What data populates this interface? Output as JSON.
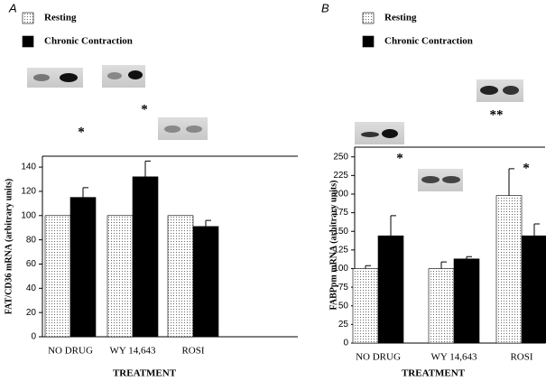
{
  "chart_data": [
    {
      "type": "bar",
      "panel_label": "A",
      "categories": [
        "NO DRUG",
        "WY 14,643",
        "ROSI"
      ],
      "series": [
        {
          "name": "Resting",
          "color": "#d8d8d8",
          "hatch": "dots",
          "values": [
            100,
            100,
            100
          ],
          "errors": [
            null,
            null,
            null
          ]
        },
        {
          "name": "Chronic Contraction",
          "color": "#000000",
          "values": [
            115,
            132,
            91
          ],
          "errors": [
            8,
            13,
            5
          ]
        }
      ],
      "ylim": [
        0,
        149
      ],
      "yticks": [
        0,
        20,
        40,
        60,
        80,
        100,
        120,
        140
      ],
      "x_label": "TREATMENT",
      "y_label": "FAT/CD36 mRNA (arbitrary units)",
      "annotations": [
        "*",
        "*"
      ]
    },
    {
      "type": "bar",
      "panel_label": "B",
      "categories": [
        "NO DRUG",
        "WY 14,643",
        "ROSI"
      ],
      "series": [
        {
          "name": "Resting",
          "color": "#d8d8d8",
          "hatch": "dots",
          "values": [
            100,
            100,
            198
          ],
          "errors": [
            4,
            9,
            36
          ]
        },
        {
          "name": "Chronic Contraction",
          "color": "#000000",
          "values": [
            144,
            113,
            144
          ],
          "errors": [
            27,
            3,
            16
          ]
        }
      ],
      "ylim": [
        0,
        263
      ],
      "yticks": [
        0,
        25,
        50,
        75,
        100,
        125,
        150,
        175,
        200,
        225,
        250
      ],
      "x_label": "TREATMENT",
      "y_label": "FABPpm mRNA (arbitrary units)",
      "annotations": [
        "*",
        "**",
        "*"
      ]
    }
  ]
}
